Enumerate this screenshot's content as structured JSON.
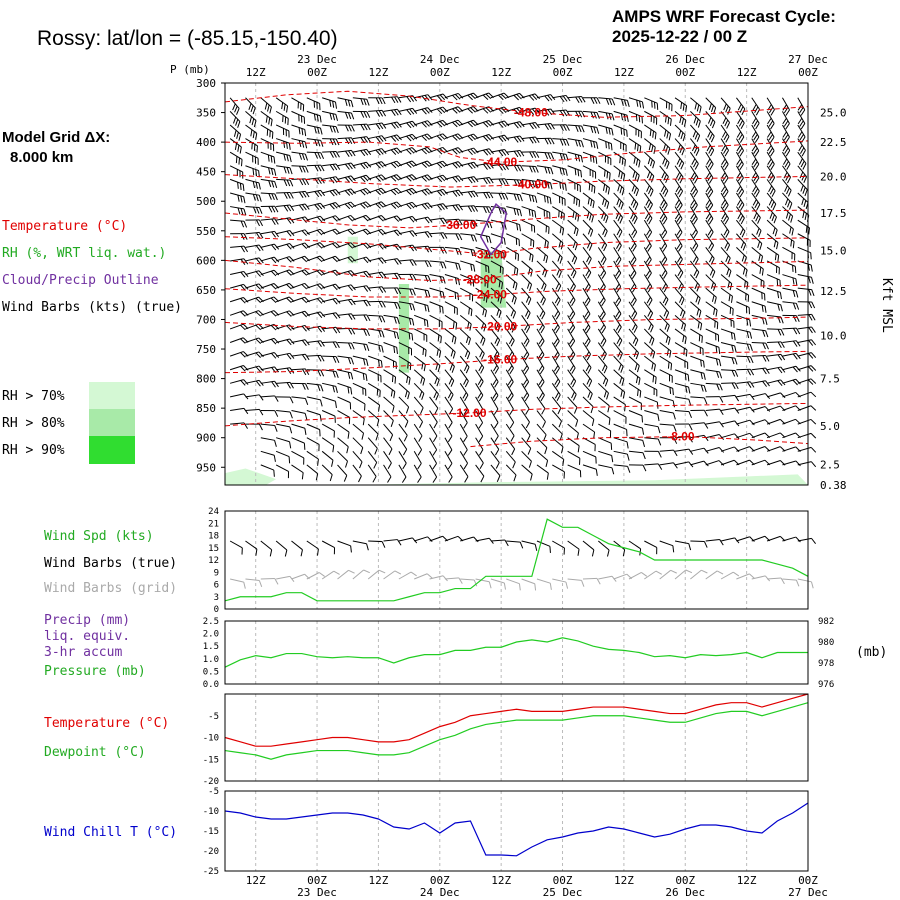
{
  "header": {
    "station": "Rossy:  lat/lon = (-85.15,-150.40)",
    "cycle_line1": "AMPS WRF Forecast Cycle:",
    "cycle_line2": "2025-12-22 / 00  Z",
    "grid_line1": "Model Grid ΔX:",
    "grid_line2": "8.000 km"
  },
  "legend": {
    "temperature": "Temperature (°C)",
    "rh": "RH (%, WRT liq. wat.)",
    "cloud": "Cloud/Precip Outline",
    "wind": "Wind Barbs (kts) (true)",
    "rh70": "RH > 70%",
    "rh80": "RH > 80%",
    "rh90": "RH > 90%"
  },
  "colors": {
    "temperature": "#e00000",
    "rh70": "#d4f8d4",
    "rh80": "#a8eaa8",
    "rh90": "#30dd30",
    "cloud": "#7030a0",
    "wind_speed": "#22cc22",
    "grid_barbs": "#aaaaaa",
    "wind_chill": "#0000cc",
    "dewpoint": "#22cc22",
    "pressure": "#22cc22"
  },
  "time_axis": {
    "ticks": [
      "12Z",
      "00Z",
      "12Z",
      "00Z",
      "12Z",
      "00Z",
      "12Z",
      "00Z",
      "12Z",
      "00Z"
    ],
    "dates": [
      "23 Dec",
      "24 Dec",
      "25 Dec",
      "26 Dec",
      "27 Dec"
    ]
  },
  "labels": {
    "p_axis": "P (mb)",
    "kft": "Kft MSL",
    "wind_spd": "Wind Spd (kts)",
    "wind_barbs_true": "Wind Barbs (true)",
    "wind_barbs_grid": "Wind Barbs (grid)",
    "precip1": "Precip (mm)",
    "precip2": "liq. equiv.",
    "precip3": "3-hr accum",
    "pressure": "Pressure (mb)",
    "pressure_unit": "(mb)",
    "temperature": "Temperature (°C)",
    "dewpoint": "Dewpoint (°C)",
    "wind_chill": "Wind Chill T (°C)"
  },
  "chart_data": [
    {
      "type": "heatmap",
      "name": "cross-section",
      "x_range_hours": [
        6,
        120
      ],
      "y_axis": "pressure (mb)",
      "ylim": [
        300,
        980
      ],
      "y_ticks": [
        "300",
        "350",
        "400",
        "450",
        "500",
        "550",
        "600",
        "650",
        "700",
        "750",
        "800",
        "850",
        "900",
        "950"
      ],
      "y_right_ticks": [
        "25.0",
        "22.5",
        "20.0",
        "17.5",
        "15.0",
        "12.5",
        "10.0",
        "7.5",
        "5.0",
        "2.5",
        "0.38"
      ],
      "temperature_contours": [
        {
          "label": "-48.00",
          "points": [
            [
              6,
              332
            ],
            [
              18,
              320
            ],
            [
              30,
              314
            ],
            [
              42,
              322
            ],
            [
              54,
              338
            ],
            [
              66,
              350
            ],
            [
              80,
              358
            ],
            [
              96,
              355
            ],
            [
              112,
              345
            ],
            [
              120,
              340
            ]
          ]
        },
        {
          "label": "-44.00",
          "points": [
            [
              6,
              400
            ],
            [
              20,
              402
            ],
            [
              34,
              400
            ],
            [
              46,
              408
            ],
            [
              52,
              426
            ],
            [
              60,
              434
            ],
            [
              72,
              430
            ],
            [
              86,
              418
            ],
            [
              100,
              408
            ],
            [
              120,
              398
            ]
          ]
        },
        {
          "label": "-40.00",
          "points": [
            [
              6,
              455
            ],
            [
              20,
              462
            ],
            [
              34,
              470
            ],
            [
              50,
              476
            ],
            [
              66,
              472
            ],
            [
              80,
              466
            ],
            [
              96,
              462
            ],
            [
              120,
              458
            ]
          ]
        },
        {
          "label": "-36.00",
          "points": [
            [
              6,
              520
            ],
            [
              18,
              530
            ],
            [
              30,
              540
            ],
            [
              42,
              545
            ],
            [
              52,
              540
            ],
            [
              66,
              530
            ],
            [
              80,
              522
            ],
            [
              96,
              518
            ],
            [
              120,
              515
            ]
          ]
        },
        {
          "label": "-32.00",
          "points": [
            [
              6,
              560
            ],
            [
              20,
              565
            ],
            [
              34,
              572
            ],
            [
              50,
              584
            ],
            [
              58,
              590
            ],
            [
              66,
              580
            ],
            [
              80,
              570
            ],
            [
              96,
              565
            ],
            [
              120,
              562
            ]
          ]
        },
        {
          "label": "-28.00",
          "points": [
            [
              6,
              600
            ],
            [
              20,
              612
            ],
            [
              34,
              628
            ],
            [
              46,
              634
            ],
            [
              56,
              632
            ],
            [
              68,
              618
            ],
            [
              82,
              610
            ],
            [
              100,
              606
            ],
            [
              120,
              602
            ]
          ]
        },
        {
          "label": "-24.00",
          "points": [
            [
              6,
              648
            ],
            [
              20,
              656
            ],
            [
              34,
              662
            ],
            [
              48,
              662
            ],
            [
              58,
              658
            ],
            [
              70,
              652
            ],
            [
              84,
              648
            ],
            [
              100,
              645
            ],
            [
              120,
              642
            ]
          ]
        },
        {
          "label": "-20.00",
          "points": [
            [
              6,
              705
            ],
            [
              20,
              712
            ],
            [
              34,
              716
            ],
            [
              48,
              716
            ],
            [
              60,
              712
            ],
            [
              74,
              705
            ],
            [
              90,
              700
            ],
            [
              110,
              698
            ],
            [
              120,
              696
            ]
          ]
        },
        {
          "label": "-16.00",
          "points": [
            [
              6,
              790
            ],
            [
              20,
              788
            ],
            [
              34,
              782
            ],
            [
              48,
              775
            ],
            [
              60,
              768
            ],
            [
              74,
              762
            ],
            [
              90,
              758
            ],
            [
              110,
              755
            ],
            [
              120,
              754
            ]
          ]
        },
        {
          "label": "-12.00",
          "points": [
            [
              6,
              880
            ],
            [
              18,
              872
            ],
            [
              30,
              866
            ],
            [
              42,
              862
            ],
            [
              54,
              858
            ],
            [
              66,
              852
            ],
            [
              80,
              848
            ],
            [
              96,
              845
            ],
            [
              120,
              842
            ]
          ]
        },
        {
          "label": "-8.00",
          "points": [
            [
              54,
              915
            ],
            [
              66,
              906
            ],
            [
              80,
              900
            ],
            [
              96,
              898
            ],
            [
              110,
              904
            ],
            [
              120,
              910
            ]
          ]
        }
      ],
      "rh_regions": [
        {
          "level": "rh70",
          "points": [
            [
              30,
              560
            ],
            [
              32,
              560
            ],
            [
              32,
              605
            ],
            [
              30,
              605
            ]
          ]
        },
        {
          "level": "rh80",
          "points": [
            [
              56,
              585
            ],
            [
              60,
              585
            ],
            [
              61,
              680
            ],
            [
              56,
              680
            ]
          ]
        },
        {
          "level": "rh80",
          "points": [
            [
              40,
              640
            ],
            [
              42,
              640
            ],
            [
              42,
              790
            ],
            [
              40,
              790
            ]
          ]
        },
        {
          "level": "rh70",
          "points": [
            [
              6,
              960
            ],
            [
              10,
              952
            ],
            [
              16,
              970
            ],
            [
              14,
              980
            ],
            [
              6,
              980
            ]
          ]
        },
        {
          "level": "rh70",
          "points": [
            [
              30,
              980
            ],
            [
              60,
              975
            ],
            [
              90,
              972
            ],
            [
              118,
              962
            ],
            [
              120,
              980
            ]
          ]
        }
      ],
      "cloud_outline": {
        "points": [
          [
            59,
            505
          ],
          [
            61,
            520
          ],
          [
            60,
            570
          ],
          [
            58,
            590
          ],
          [
            56,
            560
          ],
          [
            58,
            520
          ]
        ]
      }
    },
    {
      "type": "line",
      "name": "wind speed",
      "x": [
        6,
        9,
        12,
        15,
        18,
        21,
        24,
        27,
        30,
        33,
        36,
        39,
        42,
        45,
        48,
        51,
        54,
        57,
        60,
        63,
        66,
        69,
        72,
        75,
        78,
        81,
        84,
        87,
        90,
        93,
        96,
        99,
        102,
        105,
        108,
        111,
        114,
        117,
        120
      ],
      "series": [
        {
          "values": [
            2,
            3,
            3,
            3,
            4,
            4,
            2,
            2,
            2,
            2,
            2,
            2,
            3,
            4,
            4,
            5,
            5,
            8,
            8,
            8,
            8,
            22,
            20,
            20,
            18,
            16,
            15,
            14,
            12,
            12,
            12,
            12,
            12,
            12,
            12,
            12,
            11,
            10,
            8
          ]
        }
      ],
      "ylim": [
        0,
        24
      ],
      "y_ticks": [
        "0",
        "3",
        "6",
        "9",
        "12",
        "15",
        "18",
        "21",
        "24"
      ]
    },
    {
      "type": "line",
      "name": "pressure",
      "x": [
        6,
        9,
        12,
        15,
        18,
        21,
        24,
        27,
        30,
        33,
        36,
        39,
        42,
        45,
        48,
        51,
        54,
        57,
        60,
        63,
        66,
        69,
        72,
        75,
        78,
        81,
        84,
        87,
        90,
        93,
        96,
        99,
        102,
        105,
        108,
        111,
        114,
        117,
        120
      ],
      "series": [
        {
          "values": [
            977.6,
            978.3,
            978.7,
            978.5,
            978.9,
            978.9,
            978.6,
            978.5,
            978.6,
            978.5,
            978.5,
            978.0,
            978.5,
            978.8,
            978.8,
            979.2,
            979.2,
            979.5,
            979.5,
            980.0,
            980.2,
            980.0,
            980.4,
            980.1,
            979.6,
            979.3,
            979.2,
            979.0,
            978.6,
            978.7,
            978.5,
            978.8,
            978.7,
            978.8,
            979.0,
            978.5,
            979.0,
            979.0,
            979.0
          ]
        }
      ],
      "ylim": [
        976,
        982
      ],
      "y_ticks": [
        "976",
        "978",
        "980",
        "982"
      ],
      "precip_ticks": [
        "0.0",
        "0.5",
        "1.0",
        "1.5",
        "2.0",
        "2.5"
      ]
    },
    {
      "type": "line",
      "name": "temperature",
      "x": [
        6,
        9,
        12,
        15,
        18,
        21,
        24,
        27,
        30,
        33,
        36,
        39,
        42,
        45,
        48,
        51,
        54,
        57,
        60,
        63,
        66,
        69,
        72,
        75,
        78,
        81,
        84,
        87,
        90,
        93,
        96,
        99,
        102,
        105,
        108,
        111,
        114,
        117,
        120
      ],
      "series": [
        {
          "name": "Temperature",
          "values": [
            -10,
            -11,
            -12,
            -12,
            -11.5,
            -11,
            -10.5,
            -10,
            -10,
            -10.5,
            -11,
            -11,
            -10.5,
            -9,
            -7.5,
            -6.5,
            -5,
            -4.5,
            -4,
            -3.5,
            -4,
            -4,
            -4,
            -3.5,
            -3,
            -3,
            -3,
            -3.5,
            -4,
            -4.5,
            -4.5,
            -3.5,
            -2.5,
            -2,
            -2,
            -3,
            -2,
            -1,
            0
          ]
        },
        {
          "name": "Dewpoint",
          "values": [
            -13,
            -13.5,
            -14,
            -15,
            -14,
            -13.5,
            -13,
            -13,
            -13,
            -13.5,
            -14,
            -14,
            -13.5,
            -12,
            -10.5,
            -9.5,
            -8,
            -7,
            -6.5,
            -6,
            -6,
            -6,
            -6,
            -5.5,
            -5,
            -5,
            -5,
            -5.5,
            -6,
            -6.5,
            -6.5,
            -5.5,
            -4.5,
            -4,
            -4,
            -5,
            -4,
            -3,
            -2
          ]
        }
      ],
      "ylim": [
        -20,
        0
      ],
      "y_ticks": [
        "-20",
        "-15",
        "-10",
        "-5"
      ]
    },
    {
      "type": "line",
      "name": "wind chill",
      "x": [
        6,
        9,
        12,
        15,
        18,
        21,
        24,
        27,
        30,
        33,
        36,
        39,
        42,
        45,
        48,
        51,
        54,
        57,
        60,
        63,
        66,
        69,
        72,
        75,
        78,
        81,
        84,
        87,
        90,
        93,
        96,
        99,
        102,
        105,
        108,
        111,
        114,
        117,
        120
      ],
      "series": [
        {
          "values": [
            -10,
            -10.5,
            -11.5,
            -12,
            -12,
            -11.5,
            -11,
            -10.5,
            -10.5,
            -11,
            -12,
            -14,
            -14.5,
            -13,
            -15.5,
            -13,
            -12.5,
            -21,
            -21,
            -21.2,
            -19,
            -17.2,
            -16.5,
            -15.5,
            -15,
            -14,
            -14.5,
            -15.5,
            -16.5,
            -15.8,
            -14.5,
            -13.5,
            -13.5,
            -14,
            -15,
            -15.5,
            -12.5,
            -10.5,
            -8
          ]
        }
      ],
      "ylim": [
        -25,
        -5
      ],
      "y_ticks": [
        "-25",
        "-20",
        "-15",
        "-10",
        "-5"
      ]
    }
  ]
}
